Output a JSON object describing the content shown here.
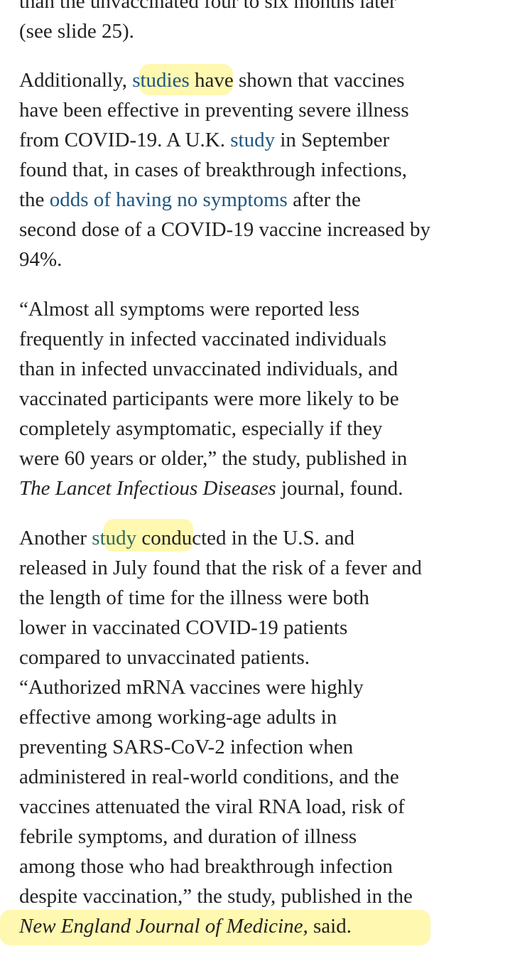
{
  "paragraphs": [
    {
      "lines": [
        [
          "than the unvaccinated four to six months later"
        ],
        [
          "(see slide 25)."
        ]
      ]
    },
    {
      "lines": [
        [
          "Additionally, ",
          "studies",
          " have shown that vaccines"
        ],
        [
          "have been effective in preventing severe illness"
        ],
        [
          "from COVID-19. A U.K. ",
          "study",
          " in September"
        ],
        [
          "found that, in cases of breakthrough infections,"
        ],
        [
          "the ",
          "odds of having no symptoms",
          " after the"
        ],
        [
          "second dose of a COVID-19 vaccine increased by"
        ],
        [
          "94%."
        ]
      ]
    },
    {
      "lines": [
        [
          "“Almost all symptoms were reported less"
        ],
        [
          "frequently in infected vaccinated individuals"
        ],
        [
          "than in infected unvaccinated individuals, and"
        ],
        [
          "vaccinated participants were more likely to be"
        ],
        [
          "completely asymptomatic, especially if they"
        ],
        [
          "were 60 years or older,” the study, published in"
        ],
        [
          "The Lancet Infectious Diseases",
          " journal, found."
        ]
      ]
    },
    {
      "lines": [
        [
          "Another ",
          "study",
          " conducted in the U.S. and"
        ],
        [
          "released in July found that the risk of a fever and"
        ],
        [
          "the length of time for the illness were both"
        ],
        [
          "lower in vaccinated COVID-19 patients"
        ],
        [
          "compared to unvaccinated patients."
        ],
        [
          "“Authorized mRNA vaccines were highly"
        ],
        [
          "effective among working-age adults in"
        ],
        [
          "preventing SARS-CoV-2 infection when"
        ],
        [
          "administered in real-world conditions, and the"
        ],
        [
          "vaccines attenuated the viral RNA load, risk of"
        ],
        [
          "febrile symptoms, and duration of illness"
        ],
        [
          "among those who had breakthrough infection"
        ],
        [
          "despite vaccination,” the study, published in the"
        ],
        [
          "New England Journal of Medicine,",
          " said."
        ]
      ]
    }
  ]
}
